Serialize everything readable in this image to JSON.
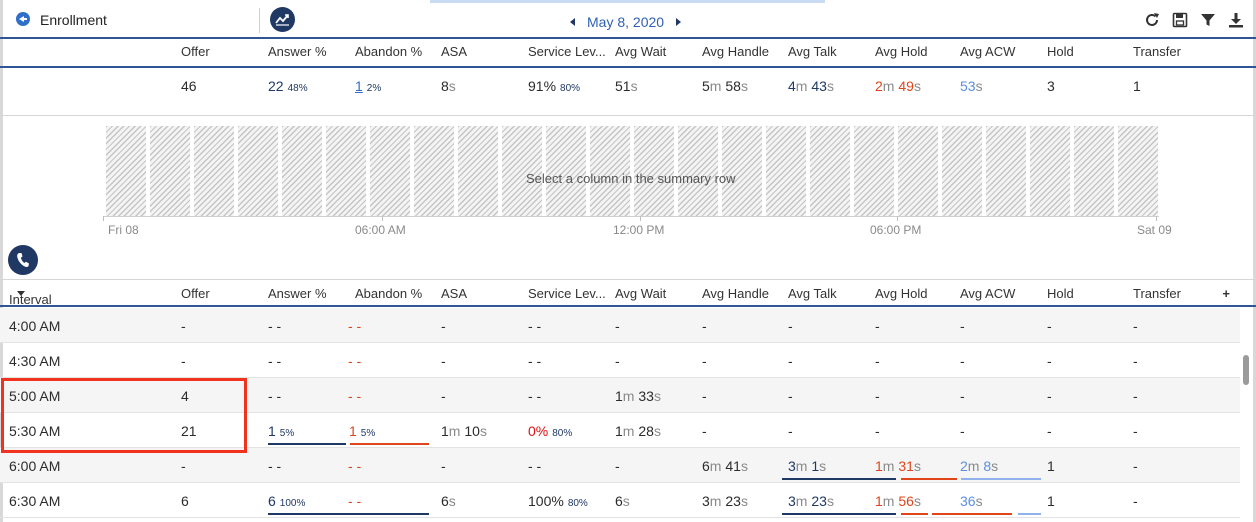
{
  "header": {
    "title": "Enrollment",
    "date": "May 8, 2020"
  },
  "columns": [
    "Offer",
    "Answer %",
    "Abandon %",
    "ASA",
    "Service Lev...",
    "Avg Wait",
    "Avg Handle",
    "Avg Talk",
    "Avg Hold",
    "Avg ACW",
    "Hold",
    "Transfer"
  ],
  "summary": {
    "offer": "46",
    "answer": "22",
    "answer_pct": "48%",
    "abandon": "1",
    "abandon_pct": "2%",
    "asa": "8",
    "asa_unit": "s",
    "service": "91%",
    "service_target": "80%",
    "wait": "51",
    "wait_unit": "s",
    "handle_m": "5",
    "handle_s": "58",
    "talk_m": "4",
    "talk_s": "43",
    "hold_m": "2",
    "hold_s": "49",
    "acw": "53",
    "acw_unit": "s",
    "hold_count": "3",
    "transfer": "1",
    "unit_m": "m",
    "unit_s": "s"
  },
  "chart": {
    "hint": "Select a column in the summary row",
    "x_labels": [
      "Fri 08",
      "06:00 AM",
      "12:00 PM",
      "06:00 PM",
      "Sat 09"
    ]
  },
  "grid": {
    "interval_header": "Interval",
    "add_label": "+",
    "dash": "-",
    "dashdash": "- -",
    "rows": [
      {
        "interval": "4:00 AM",
        "offer": "-"
      },
      {
        "interval": "4:30 AM",
        "offer": "-"
      },
      {
        "interval": "5:00 AM",
        "offer": "4",
        "wait_m": "1",
        "wait_s": "33"
      },
      {
        "interval": "5:30 AM",
        "offer": "21",
        "answer": "1",
        "answer_pct": "5%",
        "abandon": "1",
        "abandon_pct": "5%",
        "asa_m": "1",
        "asa_s": "10",
        "service": "0%",
        "service_target": "80%",
        "wait_m": "1",
        "wait_s": "28"
      },
      {
        "interval": "6:00 AM",
        "offer": "-",
        "handle_m": "6",
        "handle_s": "41",
        "talk_m": "3",
        "talk_s": "1",
        "hold_m": "1",
        "hold_s": "31",
        "acw_m": "2",
        "acw_s": "8",
        "hold_count": "1"
      },
      {
        "interval": "6:30 AM",
        "offer": "6",
        "answer": "6",
        "answer_pct": "100%",
        "asa": "6",
        "service": "100%",
        "service_target": "80%",
        "wait": "6",
        "handle_m": "3",
        "handle_s": "23",
        "talk_m": "3",
        "talk_s": "23",
        "hold_m": "1",
        "hold_s": "56",
        "acw": "36",
        "hold_count": "1"
      }
    ]
  },
  "colors": {
    "navy": "#1f3864",
    "accent_blue": "#2f5597",
    "red": "#e0441a",
    "light_blue": "#5b8fe0",
    "highlight": "#f0321e"
  }
}
